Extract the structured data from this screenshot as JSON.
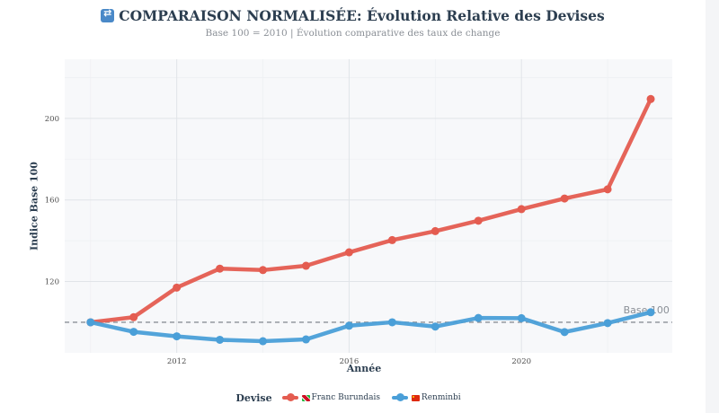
{
  "title": "COMPARAISON NORMALISÉE: Évolution Relative des Devises",
  "title_icon": "shuffle-icon",
  "subtitle": "Base 100 = 2010 | Évolution comparative des taux de change",
  "chart_data": {
    "type": "line",
    "xlabel": "Année",
    "ylabel": "Indice Base 100",
    "xlim": [
      2009.4,
      2023.5
    ],
    "ylim": [
      85,
      229
    ],
    "x_ticks": [
      2012,
      2016,
      2020
    ],
    "y_ticks": [
      120,
      160,
      200
    ],
    "grid": true,
    "legend_position": "bottom",
    "x": [
      2010,
      2011,
      2012,
      2013,
      2014,
      2015,
      2016,
      2017,
      2018,
      2019,
      2020,
      2021,
      2022,
      2023
    ],
    "series": [
      {
        "name": "Franc Burundais",
        "flag_icon": "burundi-flag-icon",
        "color": "#e45c50",
        "values": [
          100,
          102.5,
          117,
          126.3,
          125.6,
          127.7,
          134.3,
          140.3,
          144.7,
          149.8,
          155.5,
          160.7,
          165.2,
          209.5
        ]
      },
      {
        "name": "Renminbi",
        "flag_icon": "china-flag-icon",
        "color": "#4a9fd8",
        "values": [
          100,
          95.3,
          93.1,
          91.4,
          90.7,
          91.6,
          98.3,
          100,
          97.9,
          102.1,
          102,
          95.2,
          99.6,
          104.9
        ]
      }
    ],
    "reference_line": {
      "y": 100,
      "label": "Base 100",
      "color": "#8a8f96"
    },
    "legend_title": "Devise"
  }
}
